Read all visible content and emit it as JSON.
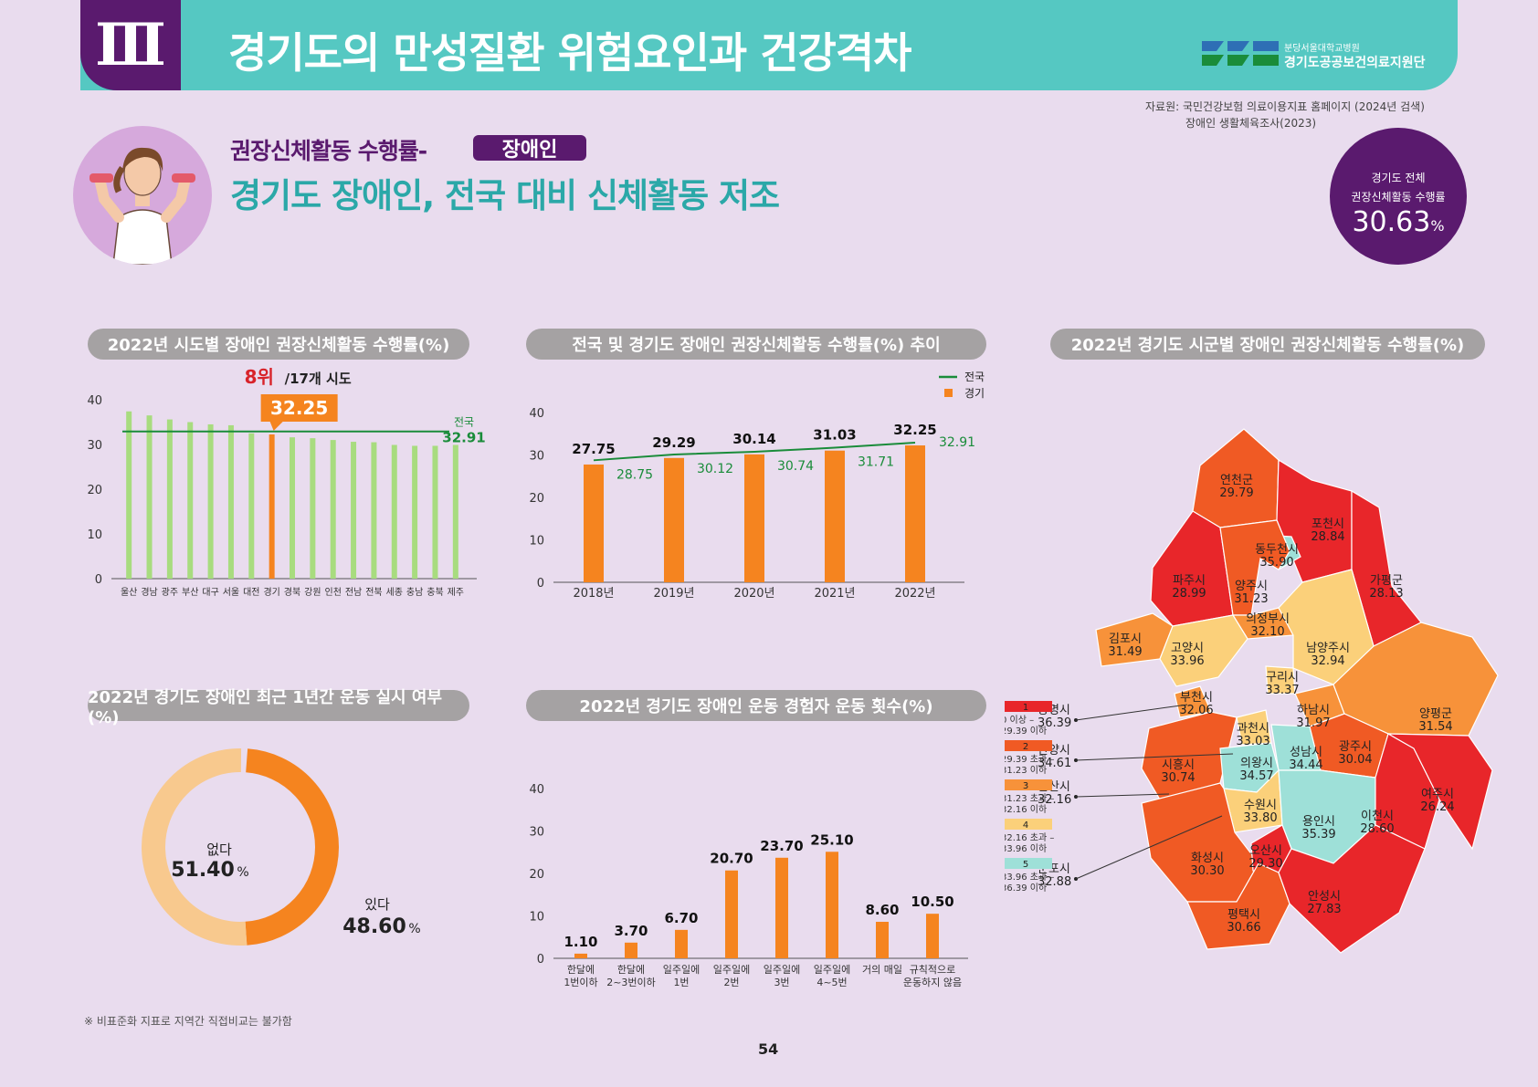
{
  "header": {
    "number": "Ⅲ",
    "title": "경기도의 만성질환 위험요인과 건강격차",
    "institution_line1": "분당서울대학교병원",
    "institution_line2": "경기도공공보건의료지원단"
  },
  "source": {
    "line1": "자료원: 국민건강보험 의료이용지표 홈페이지 (2024년 검색)",
    "line2": "장애인 생활체육조사(2023)"
  },
  "subtitle": "권장신체활동 수행률-",
  "badge": "장애인",
  "headline": "경기도 장애인, 전국 대비 신체활동 저조",
  "summary": {
    "line1": "경기도 전체",
    "line2": "권장신체활동 수행률",
    "value": "30.63",
    "unit": "%"
  },
  "footnote": "※ 비표준화 지표로 지역간 직접비교는 불가함",
  "page_number": "54",
  "colors": {
    "header_teal": "#55c8c2",
    "purple": "#5a1a6e",
    "headline_teal": "#2ba8a8",
    "bar_green": "#a8dc7f",
    "bar_orange": "#f5841f",
    "line_green": "#1a8c3a",
    "rank_red": "#d8232a",
    "donut_light": "#f8c98e"
  },
  "chart_data": [
    {
      "id": "province",
      "type": "bar",
      "title": "2022년 시도별 장애인 권장신체활동 수행률(%)",
      "categories": [
        "울산",
        "경남",
        "광주",
        "부산",
        "대구",
        "서울",
        "대전",
        "경기",
        "경북",
        "강원",
        "인천",
        "전남",
        "전북",
        "세종",
        "충남",
        "충북",
        "제주"
      ],
      "values": [
        37.4,
        36.5,
        35.6,
        35.0,
        34.5,
        34.3,
        32.5,
        32.25,
        31.6,
        31.4,
        31.0,
        30.6,
        30.5,
        29.9,
        29.7,
        29.7,
        29.9
      ],
      "highlight": "경기",
      "highlight_value": "32.25",
      "rank_text": "8위",
      "rank_suffix": "/17개 시도",
      "reference_line": {
        "label": "전국",
        "value": 32.91
      },
      "ylim": [
        0,
        40
      ],
      "yticks": [
        0,
        10,
        20,
        30,
        40
      ]
    },
    {
      "id": "trend",
      "type": "bar",
      "title": "전국 및 경기도 장애인 권장신체활동 수행률(%) 추이",
      "categories": [
        "2018년",
        "2019년",
        "2020년",
        "2021년",
        "2022년"
      ],
      "series": [
        {
          "name": "경기",
          "values": [
            27.75,
            29.29,
            30.14,
            31.03,
            32.25
          ]
        },
        {
          "name": "전국",
          "values": [
            28.75,
            30.12,
            30.74,
            31.71,
            32.91
          ]
        }
      ],
      "ylim": [
        0,
        40
      ],
      "yticks": [
        0,
        10,
        20,
        30,
        40
      ],
      "legend": "top-right"
    },
    {
      "id": "exercise",
      "type": "pie",
      "title": "2022년 경기도 장애인 최근 1년간 운동 실시 여부(%)",
      "slices": [
        {
          "label": "있다",
          "value": 48.6
        },
        {
          "label": "없다",
          "value": 51.4
        }
      ]
    },
    {
      "id": "frequency",
      "type": "bar",
      "title": "2022년 경기도 장애인 운동 경험자 운동 횟수(%)",
      "categories": [
        [
          "한달에",
          "1번이하"
        ],
        [
          "한달에",
          "2~3번이하"
        ],
        [
          "일주일에",
          "1번"
        ],
        [
          "일주일에",
          "2번"
        ],
        [
          "일주일에",
          "3번"
        ],
        [
          "일주일에",
          "4~5번"
        ],
        [
          "거의 매일",
          ""
        ],
        [
          "규칙적으로",
          "운동하지 않음"
        ]
      ],
      "values": [
        1.1,
        3.7,
        6.7,
        20.7,
        23.7,
        25.1,
        8.6,
        10.5
      ],
      "ylim": [
        0,
        40
      ],
      "yticks": [
        0,
        10,
        20,
        30,
        40
      ]
    },
    {
      "id": "map",
      "type": "table",
      "title": "2022년 경기도 시군별 장애인 권장신체활동 수행률(%)",
      "legend": [
        {
          "level": "1",
          "range": [
            "0 이상 –",
            "29.39 이하"
          ],
          "color": "#e8262a"
        },
        {
          "level": "2",
          "range": [
            "29.39 초과 –",
            "31.23 이하"
          ],
          "color": "#f05a24"
        },
        {
          "level": "3",
          "range": [
            "31.23 초과 –",
            "32.16 이하"
          ],
          "color": "#f7923a"
        },
        {
          "level": "4",
          "range": [
            "32.16 초과 –",
            "33.96 이하"
          ],
          "color": "#fbd07a"
        },
        {
          "level": "5",
          "range": [
            "33.96 초과 –",
            "36.39 이하"
          ],
          "color": "#9ee0d8"
        }
      ],
      "regions": [
        {
          "name": "연천군",
          "value": "29.79",
          "level": 2
        },
        {
          "name": "포천시",
          "value": "28.84",
          "level": 1
        },
        {
          "name": "동두천시",
          "value": "35.90",
          "level": 5
        },
        {
          "name": "파주시",
          "value": "28.99",
          "level": 1
        },
        {
          "name": "양주시",
          "value": "31.23",
          "level": 2
        },
        {
          "name": "가평군",
          "value": "28.13",
          "level": 1
        },
        {
          "name": "의정부시",
          "value": "32.10",
          "level": 3
        },
        {
          "name": "김포시",
          "value": "31.49",
          "level": 3
        },
        {
          "name": "고양시",
          "value": "33.96",
          "level": 4
        },
        {
          "name": "남양주시",
          "value": "32.94",
          "level": 4
        },
        {
          "name": "구리시",
          "value": "33.37",
          "level": 4
        },
        {
          "name": "부천시",
          "value": "32.06",
          "level": 3
        },
        {
          "name": "하남시",
          "value": "31.97",
          "level": 3
        },
        {
          "name": "양평군",
          "value": "31.54",
          "level": 3
        },
        {
          "name": "과천시",
          "value": "33.03",
          "level": 4
        },
        {
          "name": "성남시",
          "value": "34.44",
          "level": 5
        },
        {
          "name": "광주시",
          "value": "30.04",
          "level": 2
        },
        {
          "name": "시흥시",
          "value": "30.74",
          "level": 2
        },
        {
          "name": "의왕시",
          "value": "34.57",
          "level": 5
        },
        {
          "name": "수원시",
          "value": "33.80",
          "level": 4
        },
        {
          "name": "용인시",
          "value": "35.39",
          "level": 5
        },
        {
          "name": "이천시",
          "value": "28.60",
          "level": 1
        },
        {
          "name": "여주시",
          "value": "26.24",
          "level": 1
        },
        {
          "name": "화성시",
          "value": "30.30",
          "level": 2
        },
        {
          "name": "오산시",
          "value": "29.30",
          "level": 1
        },
        {
          "name": "평택시",
          "value": "30.66",
          "level": 2
        },
        {
          "name": "안성시",
          "value": "27.83",
          "level": 1
        },
        {
          "name": "광명시",
          "value": "36.39",
          "level": 5
        },
        {
          "name": "안양시",
          "value": "34.61",
          "level": 5
        },
        {
          "name": "안산시",
          "value": "32.16",
          "level": 3
        },
        {
          "name": "군포시",
          "value": "32.88",
          "level": 4
        }
      ]
    }
  ]
}
